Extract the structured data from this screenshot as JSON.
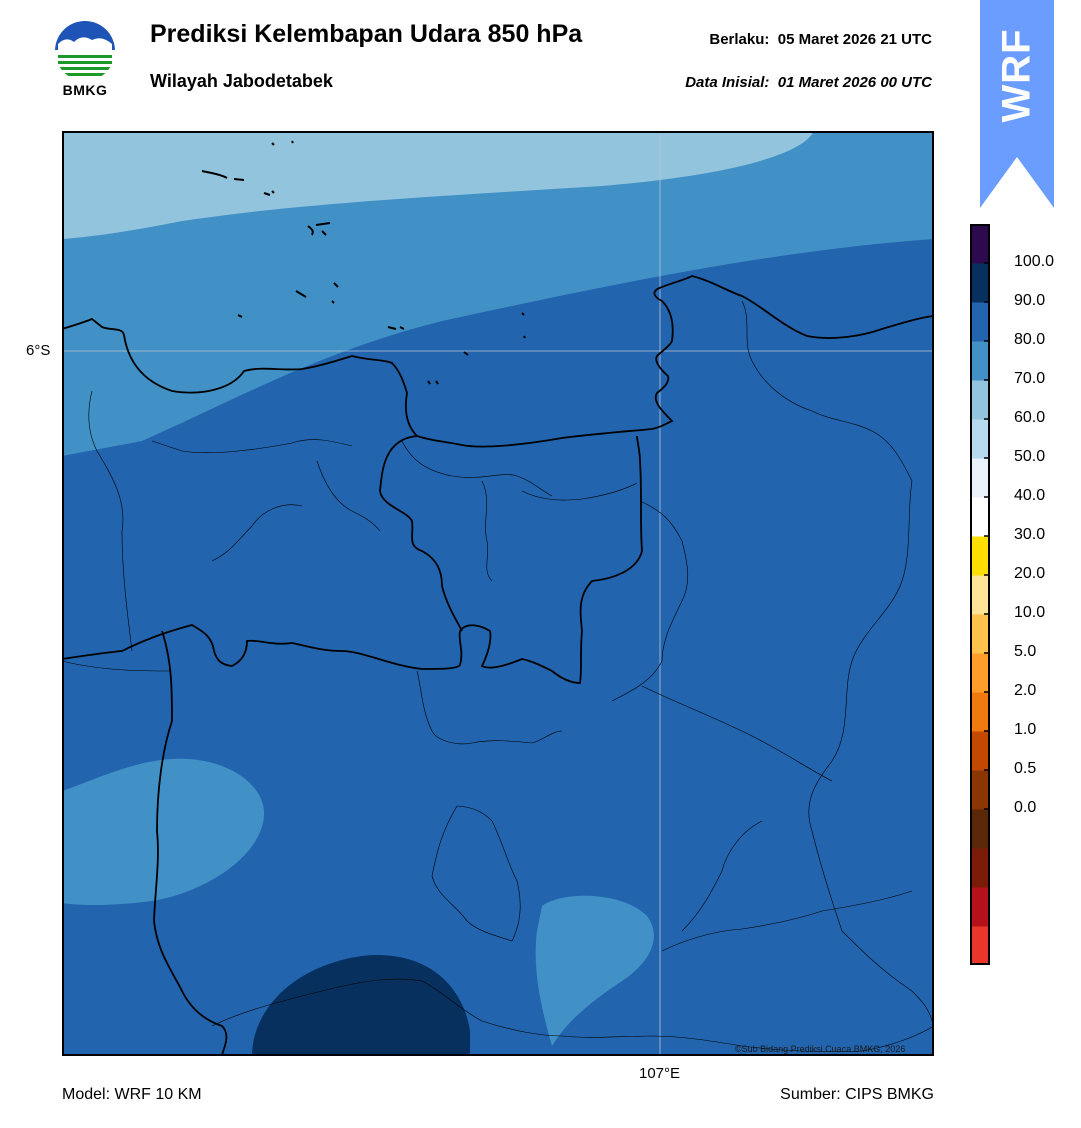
{
  "header": {
    "logo_text": "BMKG",
    "title": "Prediksi Kelembapan Udara 850 hPa",
    "subtitle": "Wilayah Jabodetabek",
    "valid_label": "Berlaku:",
    "valid_time": "05 Maret 2026 21 UTC",
    "initial_label": "Data Inisial:",
    "initial_time": "01 Maret 2026 00 UTC"
  },
  "badge": {
    "text": "WRF",
    "color": "#6b9cff"
  },
  "map": {
    "lat_label": "6°S",
    "lon_label": "107°E",
    "copyright": "©Sub Bidang Prediksi Cuaca BMKG, 2026",
    "colors": {
      "band_60_70": "#93c4de",
      "band_70_80": "#4191c6",
      "band_80_90": "#2264ae",
      "band_90_100": "#07305f",
      "coastline": "#000000"
    }
  },
  "colorbar": {
    "labels": [
      "100.0",
      "90.0",
      "80.0",
      "70.0",
      "60.0",
      "50.0",
      "40.0",
      "30.0",
      "20.0",
      "10.0",
      "5.0",
      "2.0",
      "1.0",
      "0.5",
      "0.0"
    ],
    "colors": [
      "#e8372a",
      "#b5111a",
      "#7b1c0b",
      "#5a2708",
      "#8a3603",
      "#c34800",
      "#f07a10",
      "#ff9d2b",
      "#ffc24d",
      "#ffe497",
      "#fedd00",
      "#ffffff",
      "#e9f2fa",
      "#b7dbee",
      "#93c4de",
      "#4191c6",
      "#2264ae",
      "#07305f",
      "#2c0a4d"
    ]
  },
  "footer": {
    "model": "Model: WRF 10 KM",
    "source": "Sumber: CIPS BMKG"
  }
}
